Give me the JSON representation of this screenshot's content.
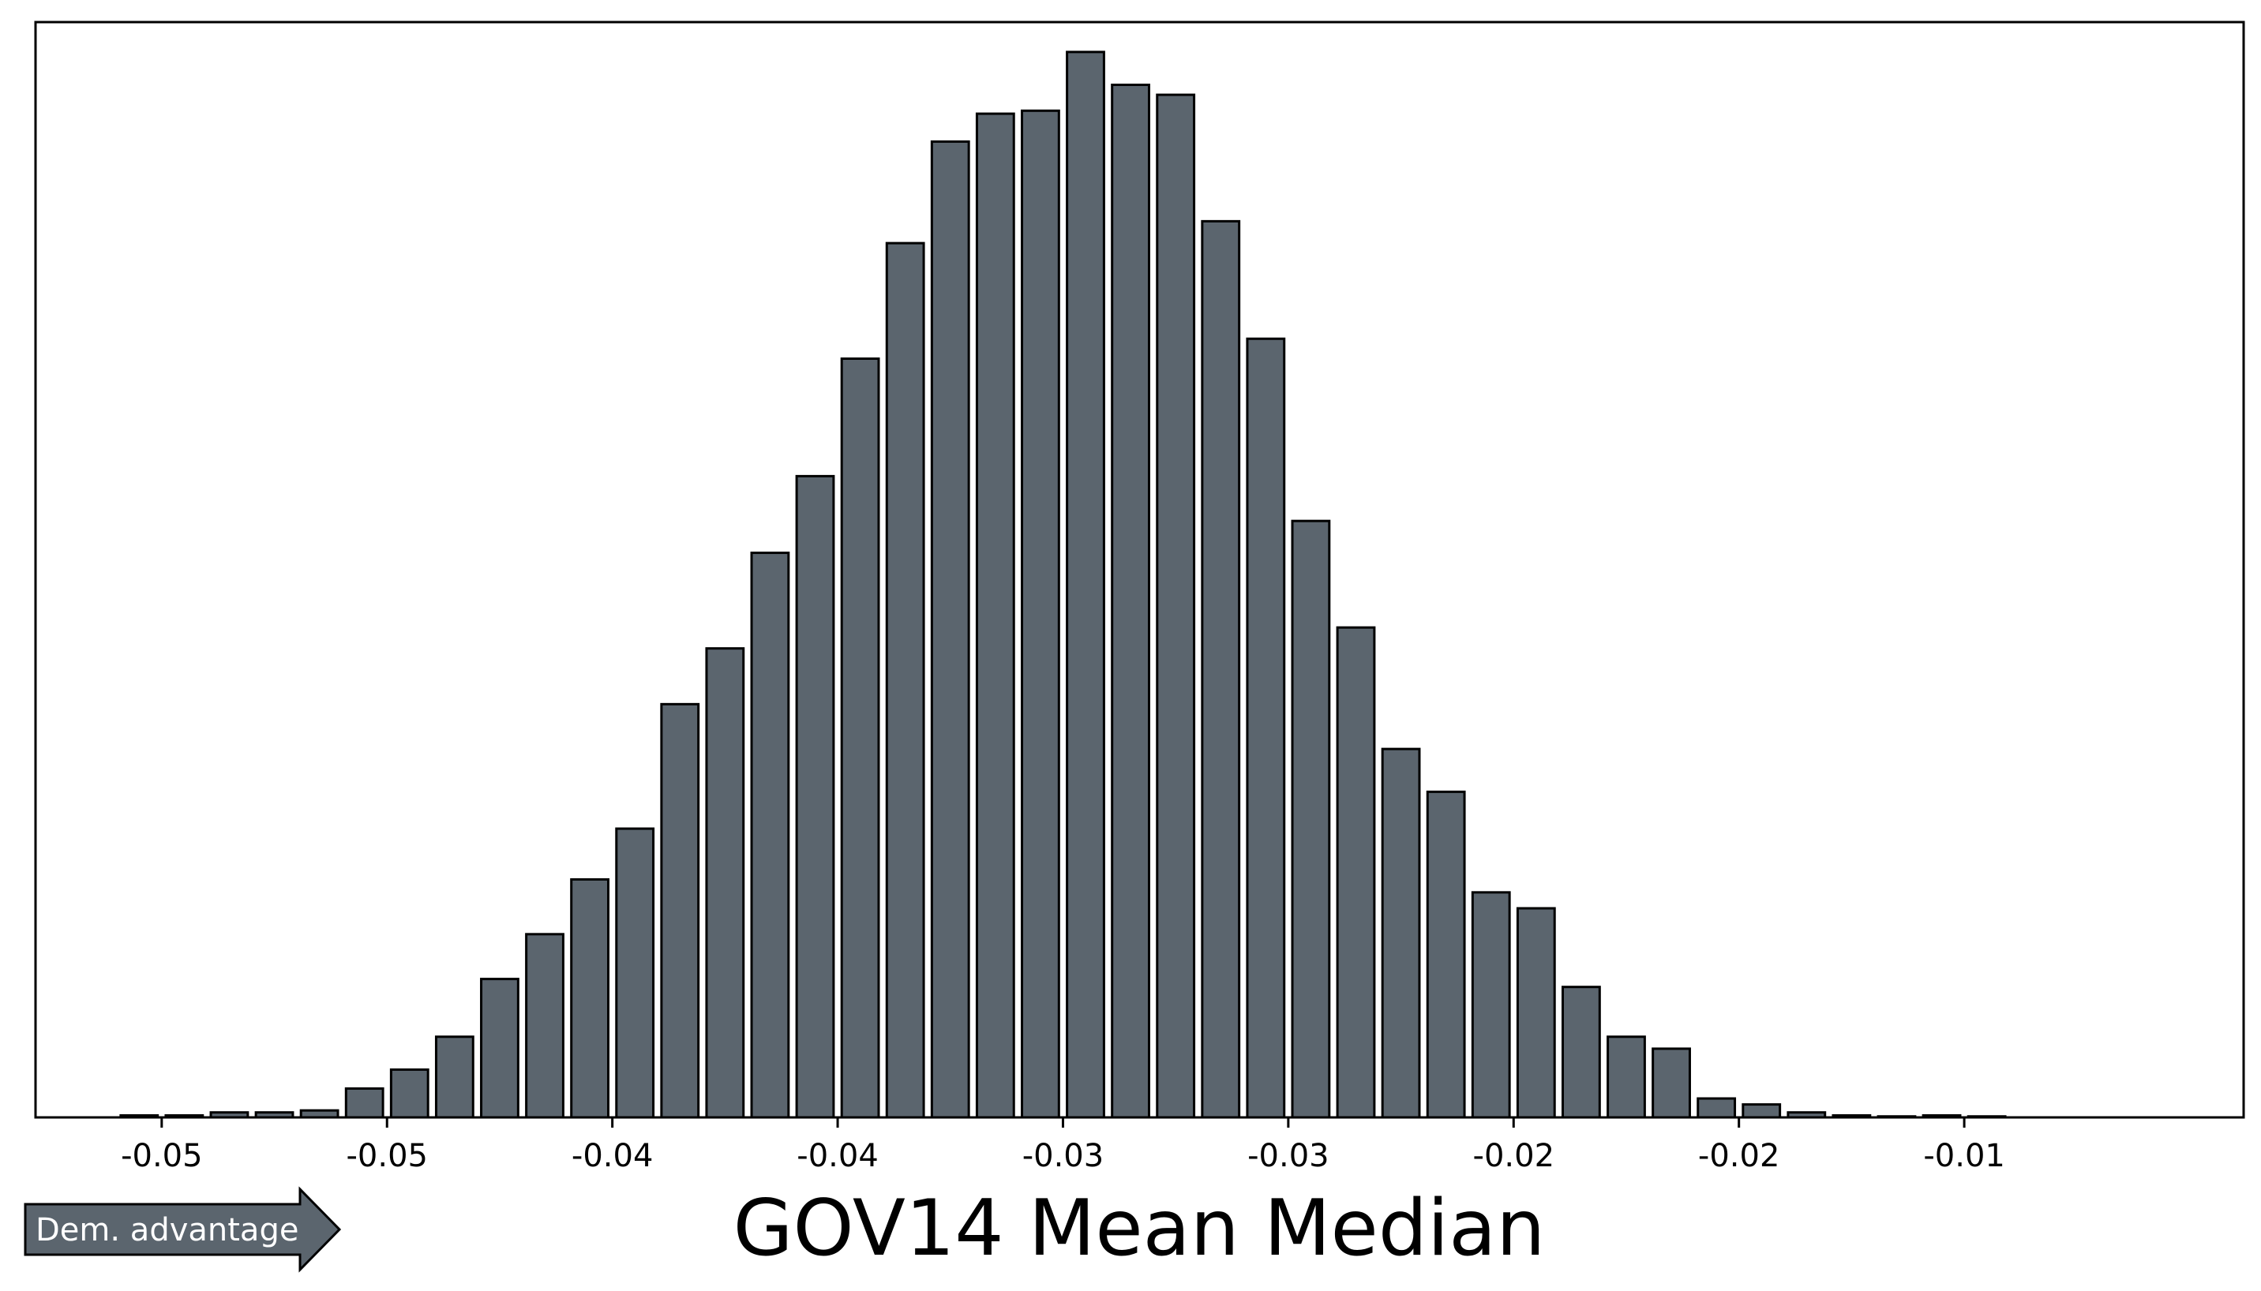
{
  "chart_data": {
    "type": "bar",
    "title": "",
    "xlabel": "GOV14 Mean Median",
    "ylabel": "",
    "bar_color": "#5b656e",
    "edge_color": "#000000",
    "xlim": [
      -0.0578,
      -0.0088
    ],
    "ylim": [
      0,
      1100
    ],
    "grid": false,
    "legend": "none",
    "xticks": [
      {
        "value": -0.055,
        "label": "-0.05"
      },
      {
        "value": -0.05,
        "label": "-0.05"
      },
      {
        "value": -0.045,
        "label": "-0.04"
      },
      {
        "value": -0.04,
        "label": "-0.04"
      },
      {
        "value": -0.035,
        "label": "-0.03"
      },
      {
        "value": -0.03,
        "label": "-0.03"
      },
      {
        "value": -0.025,
        "label": "-0.02"
      },
      {
        "value": -0.02,
        "label": "-0.02"
      },
      {
        "value": -0.015,
        "label": "-0.01"
      }
    ],
    "bin_start": -0.0555,
    "bin_width": 0.001,
    "bar_width_fraction": 0.82,
    "values": [
      2,
      2,
      5,
      5,
      7,
      29,
      48,
      81,
      139,
      184,
      239,
      290,
      415,
      471,
      567,
      644,
      762,
      878,
      980,
      1008,
      1011,
      1070,
      1037,
      1027,
      900,
      782,
      599,
      492,
      370,
      327,
      226,
      210,
      131,
      81,
      69,
      19,
      13,
      5,
      2,
      1,
      2,
      1
    ]
  },
  "annotation": {
    "label": "Dem. advantage",
    "fill": "#5b656e"
  }
}
